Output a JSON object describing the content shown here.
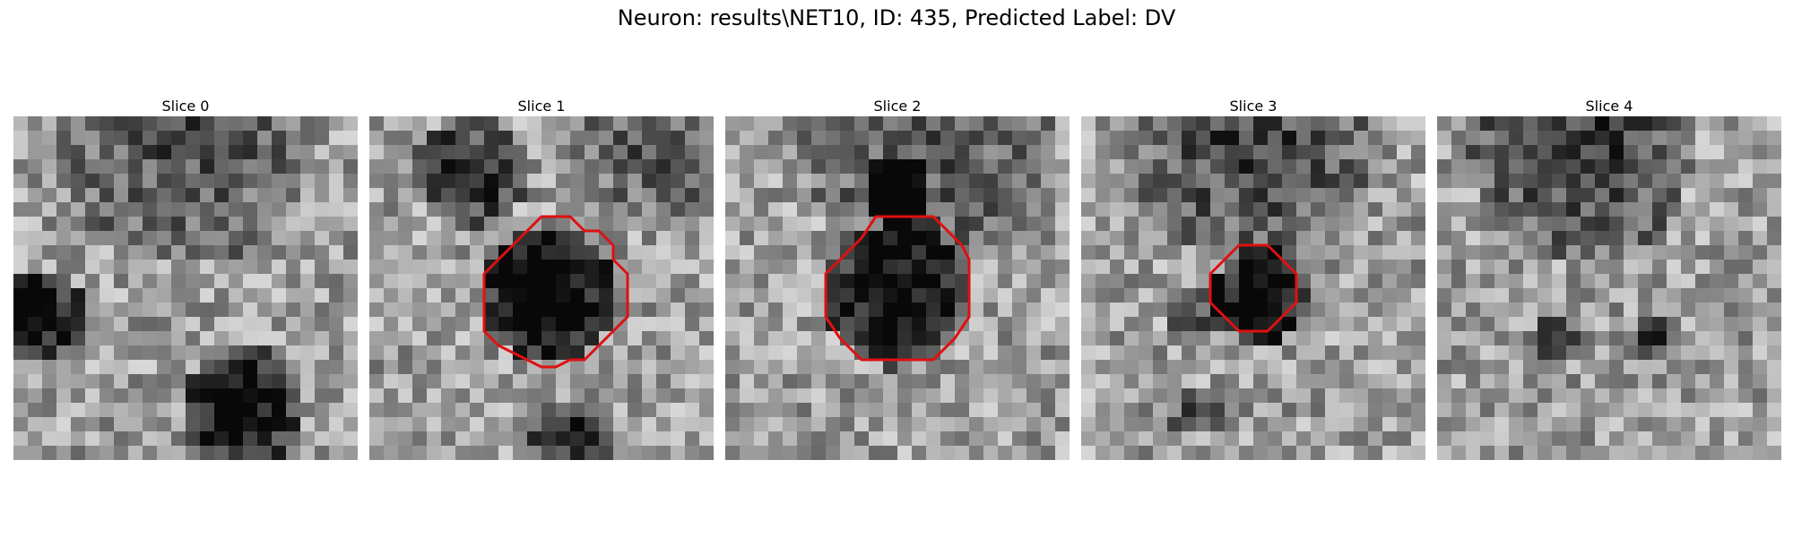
{
  "figure": {
    "title": "Neuron: results\\NET10, ID: 435, Predicted Label: DV"
  },
  "panels": [
    {
      "title": "Slice 0",
      "has_outline": false
    },
    {
      "title": "Slice 1",
      "has_outline": true
    },
    {
      "title": "Slice 2",
      "has_outline": true
    },
    {
      "title": "Slice 3",
      "has_outline": true
    },
    {
      "title": "Slice 4",
      "has_outline": false
    }
  ],
  "colors": {
    "outline": "#e01010"
  }
}
